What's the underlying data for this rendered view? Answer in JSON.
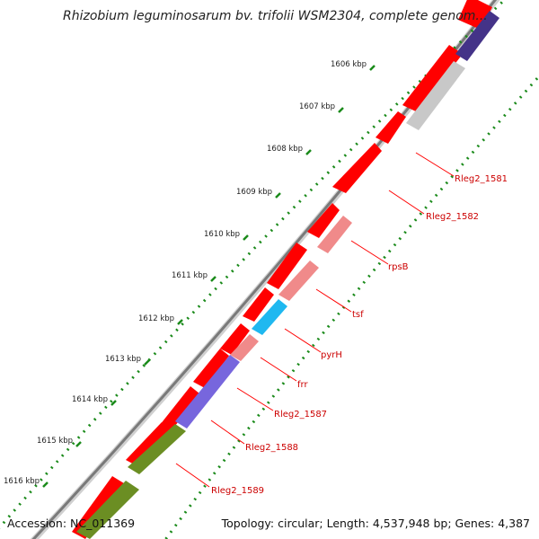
{
  "title": "Rhizobium leguminosarum bv. trifolii WSM2304, complete genom...",
  "footer": {
    "accession": "Accession: NC_011369",
    "summary": "Topology: circular; Length: 4,537,948 bp; Genes: 4,387"
  },
  "scale": {
    "unit": "kbp",
    "ticks": [
      "1606 kbp",
      "1607 kbp",
      "1608 kbp",
      "1609 kbp",
      "1610 kbp",
      "1611 kbp",
      "1612 kbp",
      "1613 kbp",
      "1614 kbp",
      "1615 kbp",
      "1616 kbp"
    ]
  },
  "gene_labels": [
    "Rleg2_1581",
    "Rleg2_1582",
    "rpsB",
    "tsf",
    "pyrH",
    "frr",
    "Rleg2_1587",
    "Rleg2_1588",
    "Rleg2_1589"
  ],
  "colors": {
    "cds": "#ff0000",
    "label": "#cc0000",
    "rrna_like": "#f08a8a",
    "pyrH": "#1fb8f0",
    "purple": "#7766dd",
    "dark_purple": "#443388",
    "green": "#6b8e23",
    "grey": "#c8c8c8",
    "tick": "#1a8a1a",
    "backbone": "#808080"
  }
}
